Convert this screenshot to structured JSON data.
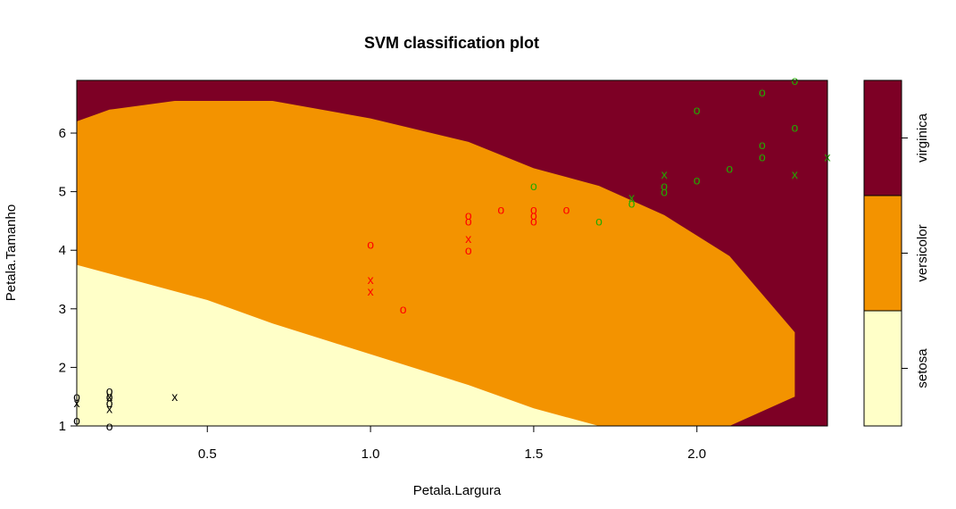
{
  "chart_data": {
    "type": "scatter",
    "title": "SVM classification plot",
    "xlabel": "Petala.Largura",
    "ylabel": "Petala.Tamanho",
    "xlim": [
      0.1,
      2.4
    ],
    "ylim": [
      1.0,
      6.9
    ],
    "xticks": [
      0.5,
      1.0,
      1.5,
      2.0
    ],
    "xtick_labels": [
      "0.5",
      "1.0",
      "1.5",
      "2.0"
    ],
    "yticks": [
      1,
      2,
      3,
      4,
      5,
      6
    ],
    "ytick_labels": [
      "1",
      "2",
      "3",
      "4",
      "5",
      "6"
    ],
    "grid": false,
    "legend_position": "right",
    "region_colors": {
      "setosa": "#FFFFC8",
      "versicolor": "#F39300",
      "virginica": "#7D0025"
    },
    "legend": [
      {
        "label": "virginica",
        "color": "#7D0025"
      },
      {
        "label": "versicolor",
        "color": "#F39300"
      },
      {
        "label": "setosa",
        "color": "#FFFFC8"
      }
    ],
    "series": [
      {
        "name": "setosa",
        "color": "#000000",
        "points": [
          {
            "x": 0.1,
            "y": 1.5,
            "m": "o"
          },
          {
            "x": 0.1,
            "y": 1.4,
            "m": "x"
          },
          {
            "x": 0.1,
            "y": 1.1,
            "m": "o"
          },
          {
            "x": 0.2,
            "y": 1.6,
            "m": "o"
          },
          {
            "x": 0.2,
            "y": 1.5,
            "m": "o"
          },
          {
            "x": 0.2,
            "y": 1.5,
            "m": "x"
          },
          {
            "x": 0.2,
            "y": 1.4,
            "m": "o"
          },
          {
            "x": 0.2,
            "y": 1.3,
            "m": "x"
          },
          {
            "x": 0.2,
            "y": 1.0,
            "m": "o"
          },
          {
            "x": 0.4,
            "y": 1.5,
            "m": "x"
          }
        ]
      },
      {
        "name": "versicolor",
        "color": "#FF0000",
        "points": [
          {
            "x": 1.0,
            "y": 4.1,
            "m": "o"
          },
          {
            "x": 1.0,
            "y": 3.5,
            "m": "x"
          },
          {
            "x": 1.0,
            "y": 3.3,
            "m": "x"
          },
          {
            "x": 1.1,
            "y": 3.0,
            "m": "o"
          },
          {
            "x": 1.3,
            "y": 4.6,
            "m": "o"
          },
          {
            "x": 1.3,
            "y": 4.5,
            "m": "o"
          },
          {
            "x": 1.3,
            "y": 4.2,
            "m": "x"
          },
          {
            "x": 1.3,
            "y": 4.0,
            "m": "o"
          },
          {
            "x": 1.4,
            "y": 4.7,
            "m": "o"
          },
          {
            "x": 1.5,
            "y": 4.7,
            "m": "o"
          },
          {
            "x": 1.5,
            "y": 4.6,
            "m": "o"
          },
          {
            "x": 1.5,
            "y": 4.5,
            "m": "o"
          },
          {
            "x": 1.6,
            "y": 4.7,
            "m": "o"
          }
        ]
      },
      {
        "name": "virginica",
        "color": "#22AA00",
        "points": [
          {
            "x": 1.5,
            "y": 5.1,
            "m": "o"
          },
          {
            "x": 1.7,
            "y": 4.5,
            "m": "o"
          },
          {
            "x": 1.8,
            "y": 4.9,
            "m": "x"
          },
          {
            "x": 1.8,
            "y": 4.8,
            "m": "o"
          },
          {
            "x": 1.9,
            "y": 5.3,
            "m": "x"
          },
          {
            "x": 1.9,
            "y": 5.1,
            "m": "o"
          },
          {
            "x": 1.9,
            "y": 5.0,
            "m": "o"
          },
          {
            "x": 2.0,
            "y": 6.4,
            "m": "o"
          },
          {
            "x": 2.0,
            "y": 5.2,
            "m": "o"
          },
          {
            "x": 2.1,
            "y": 5.4,
            "m": "o"
          },
          {
            "x": 2.2,
            "y": 6.7,
            "m": "o"
          },
          {
            "x": 2.2,
            "y": 5.8,
            "m": "o"
          },
          {
            "x": 2.2,
            "y": 5.6,
            "m": "o"
          },
          {
            "x": 2.3,
            "y": 6.9,
            "m": "o"
          },
          {
            "x": 2.3,
            "y": 6.1,
            "m": "o"
          },
          {
            "x": 2.3,
            "y": 5.3,
            "m": "x"
          },
          {
            "x": 2.4,
            "y": 5.6,
            "m": "x"
          }
        ]
      }
    ],
    "decision_boundaries": {
      "upper": [
        [
          0.1,
          6.2
        ],
        [
          0.2,
          6.4
        ],
        [
          0.4,
          6.55
        ],
        [
          0.7,
          6.55
        ],
        [
          1.0,
          6.25
        ],
        [
          1.3,
          5.85
        ],
        [
          1.5,
          5.4
        ],
        [
          1.7,
          5.1
        ],
        [
          1.9,
          4.6
        ],
        [
          2.1,
          3.9
        ],
        [
          2.3,
          2.6
        ],
        [
          2.3,
          1.5
        ],
        [
          2.1,
          1.0
        ]
      ],
      "lower": [
        [
          0.1,
          3.75
        ],
        [
          0.3,
          3.45
        ],
        [
          0.5,
          3.15
        ],
        [
          0.7,
          2.75
        ],
        [
          0.9,
          2.4
        ],
        [
          1.1,
          2.05
        ],
        [
          1.3,
          1.7
        ],
        [
          1.5,
          1.3
        ],
        [
          1.7,
          1.0
        ]
      ]
    }
  }
}
